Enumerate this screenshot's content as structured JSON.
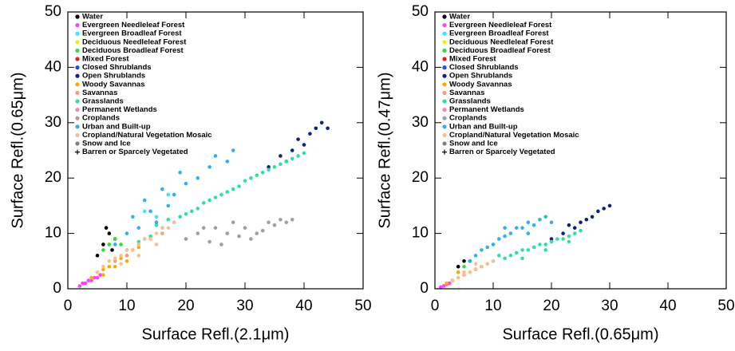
{
  "chart_data": [
    {
      "type": "scatter",
      "xlabel": "Surface Refl.(2.1μm)",
      "ylabel": "Surface Refl.(0.65μm)",
      "xlim": [
        0,
        50
      ],
      "ylim": [
        0,
        50
      ],
      "xticks": [
        0,
        10,
        20,
        30,
        40,
        50
      ],
      "yticks": [
        0,
        10,
        20,
        30,
        40,
        50
      ],
      "legend": "upper left",
      "series": [
        {
          "name": "Water",
          "color": "#000000",
          "marker": "circle",
          "x": [
            5,
            6,
            7,
            8,
            6.5,
            7.5
          ],
          "values": [
            6,
            8,
            10,
            9,
            11,
            7
          ]
        },
        {
          "name": "Evergreen Needleleaf Forest",
          "color": "#ff40ff",
          "marker": "circle",
          "x": [
            2,
            2.5,
            3,
            3.5,
            4,
            4.5,
            5,
            5.5
          ],
          "values": [
            0.5,
            1,
            1,
            1.5,
            1.5,
            2,
            2,
            2.5
          ]
        },
        {
          "name": "Evergreen Broadleaf Forest",
          "color": "#40e0ff",
          "marker": "circle",
          "x": [
            13,
            15,
            17
          ],
          "values": [
            14,
            13,
            17
          ]
        },
        {
          "name": "Deciduous Needleleaf Forest",
          "color": "#f0f000",
          "marker": "circle",
          "x": [],
          "values": []
        },
        {
          "name": "Deciduous Broadleaf Forest",
          "color": "#30e030",
          "marker": "circle",
          "x": [
            6,
            7,
            8,
            9
          ],
          "values": [
            7,
            8,
            9,
            8
          ]
        },
        {
          "name": "Mixed Forest",
          "color": "#e02020",
          "marker": "circle",
          "x": [],
          "values": []
        },
        {
          "name": "Closed Shrublands",
          "color": "#2050e0",
          "marker": "circle",
          "x": [],
          "values": []
        },
        {
          "name": "Open Shrublands",
          "color": "#102080",
          "marker": "circle",
          "x": [
            34,
            36,
            38,
            40,
            41,
            42,
            43,
            44,
            37,
            39
          ],
          "values": [
            22,
            24,
            25,
            26,
            28,
            29,
            30,
            29,
            23,
            27
          ]
        },
        {
          "name": "Woody Savannas",
          "color": "#f0b000",
          "marker": "circle",
          "x": [
            4,
            5,
            6,
            7,
            8,
            9,
            10,
            11,
            12,
            6,
            8,
            10
          ],
          "values": [
            2,
            3,
            3.5,
            4,
            5,
            5.5,
            6,
            7,
            7.5,
            2.5,
            4,
            5
          ]
        },
        {
          "name": "Savannas",
          "color": "#f0a080",
          "marker": "circle",
          "x": [
            8,
            10,
            12,
            14,
            16
          ],
          "values": [
            5,
            6,
            8,
            9,
            10
          ]
        },
        {
          "name": "Grasslands",
          "color": "#30e0a0",
          "marker": "circle",
          "x": [
            10,
            12,
            14,
            16,
            18,
            20,
            22,
            24,
            26,
            28,
            30,
            32,
            34,
            36,
            38,
            40,
            15,
            19,
            23,
            27,
            31,
            35,
            39,
            13,
            17,
            25,
            29,
            33,
            37,
            21
          ],
          "values": [
            7,
            8.5,
            9.5,
            11,
            12,
            13.5,
            14.5,
            16,
            17,
            18,
            19.5,
            20.5,
            21.5,
            22.5,
            23.5,
            24.5,
            11.5,
            13,
            15.5,
            17.5,
            20,
            22,
            24,
            9,
            12.5,
            16.5,
            18.5,
            21,
            23,
            14
          ]
        },
        {
          "name": "Permanent Wetlands",
          "color": "#ff80c0",
          "marker": "circle",
          "x": [],
          "values": []
        },
        {
          "name": "Croplands",
          "color": "#a0a0a0",
          "marker": "circle",
          "x": [
            20,
            22,
            24,
            25,
            27,
            28,
            30,
            31,
            33,
            34,
            35,
            36,
            37,
            26,
            29,
            32,
            23,
            38
          ],
          "values": [
            9,
            10,
            8.5,
            11,
            10,
            12,
            11,
            9,
            10.5,
            12,
            11.5,
            12.5,
            12,
            8,
            9.5,
            10,
            11,
            12.5
          ]
        },
        {
          "name": "Urban and Built-up",
          "color": "#30b0f0",
          "marker": "circle",
          "x": [
            8,
            10,
            12,
            14,
            15,
            17,
            18,
            20,
            22,
            24,
            25,
            27,
            28,
            13,
            16,
            19,
            11
          ],
          "values": [
            8,
            10,
            11,
            14,
            12,
            15,
            17,
            19,
            20,
            22,
            24,
            23,
            25,
            16,
            18,
            21,
            13
          ]
        },
        {
          "name": "Cropland/Natural Vegetation Mosaic",
          "color": "#f8c090",
          "marker": "circle",
          "x": [
            5,
            6,
            7,
            8,
            9,
            10,
            11,
            12,
            13,
            14,
            15,
            16,
            17,
            18,
            9,
            12,
            15
          ],
          "values": [
            3,
            4,
            5,
            5.5,
            6,
            7,
            7,
            8,
            9,
            9,
            10,
            11,
            11,
            12,
            4.5,
            6,
            8
          ]
        },
        {
          "name": "Snow and Ice",
          "color": "#808080",
          "marker": "circle",
          "x": [],
          "values": []
        },
        {
          "name": "Barren or Sparcely Vegetated",
          "color": "#000000",
          "marker": "plus",
          "x": [],
          "values": []
        }
      ]
    },
    {
      "type": "scatter",
      "xlabel": "Surface Refl.(0.65μm)",
      "ylabel": "Surface Refl.(0.47μm)",
      "xlim": [
        0,
        50
      ],
      "ylim": [
        0,
        50
      ],
      "xticks": [
        0,
        10,
        20,
        30,
        40,
        50
      ],
      "yticks": [
        0,
        10,
        20,
        30,
        40,
        50
      ],
      "legend": "upper left",
      "series": [
        {
          "name": "Water",
          "color": "#000000",
          "marker": "circle",
          "x": [
            4,
            5,
            6
          ],
          "values": [
            4,
            5,
            5
          ]
        },
        {
          "name": "Evergreen Needleleaf Forest",
          "color": "#ff40ff",
          "marker": "circle",
          "x": [
            1,
            1.5,
            2,
            2.5,
            3
          ],
          "values": [
            0.3,
            0.5,
            0.8,
            1,
            1.5
          ]
        },
        {
          "name": "Evergreen Broadleaf Forest",
          "color": "#40e0ff",
          "marker": "circle",
          "x": [],
          "values": []
        },
        {
          "name": "Deciduous Needleleaf Forest",
          "color": "#f0f000",
          "marker": "circle",
          "x": [],
          "values": []
        },
        {
          "name": "Deciduous Broadleaf Forest",
          "color": "#30e030",
          "marker": "circle",
          "x": [
            4,
            5
          ],
          "values": [
            3,
            4
          ]
        },
        {
          "name": "Mixed Forest",
          "color": "#e02020",
          "marker": "circle",
          "x": [],
          "values": []
        },
        {
          "name": "Closed Shrublands",
          "color": "#2050e0",
          "marker": "circle",
          "x": [],
          "values": []
        },
        {
          "name": "Open Shrublands",
          "color": "#102080",
          "marker": "circle",
          "x": [
            20,
            22,
            24,
            25,
            26,
            27,
            28,
            29,
            30,
            23
          ],
          "values": [
            9,
            10,
            11,
            12,
            12.5,
            13,
            14,
            14.5,
            15,
            11.5
          ]
        },
        {
          "name": "Woody Savannas",
          "color": "#f0b000",
          "marker": "circle",
          "x": [
            2,
            3,
            4,
            5,
            6,
            7,
            8,
            4
          ],
          "values": [
            1,
            1.5,
            2,
            2.5,
            3,
            3.5,
            4,
            3
          ]
        },
        {
          "name": "Savannas",
          "color": "#f0a080",
          "marker": "circle",
          "x": [
            5,
            7,
            9
          ],
          "values": [
            2.5,
            3.5,
            4.5
          ]
        },
        {
          "name": "Grasslands",
          "color": "#30e0a0",
          "marker": "circle",
          "x": [
            8,
            10,
            12,
            13,
            14,
            15,
            16,
            17,
            18,
            19,
            20,
            21,
            22,
            23,
            24,
            25,
            11,
            15,
            19,
            23
          ],
          "values": [
            4,
            5,
            5.5,
            6,
            6.5,
            7,
            7,
            7.5,
            8,
            8,
            8.5,
            9,
            9,
            9.5,
            10,
            10.5,
            6,
            5.5,
            7,
            8.5
          ]
        },
        {
          "name": "Permanent Wetlands",
          "color": "#ff80c0",
          "marker": "circle",
          "x": [],
          "values": []
        },
        {
          "name": "Croplands",
          "color": "#a0a0a0",
          "marker": "circle",
          "x": [],
          "values": []
        },
        {
          "name": "Urban and Built-up",
          "color": "#30b0f0",
          "marker": "circle",
          "x": [
            6,
            7,
            8,
            9,
            10,
            11,
            12,
            13,
            14,
            15,
            16,
            17,
            18,
            19,
            20,
            12,
            16
          ],
          "values": [
            5,
            6,
            7,
            7.5,
            8,
            9,
            9.5,
            10,
            11,
            11,
            12,
            11.5,
            12.5,
            13,
            12,
            11,
            10
          ]
        },
        {
          "name": "Cropland/Natural Vegetation Mosaic",
          "color": "#f8c090",
          "marker": "circle",
          "x": [
            3,
            4,
            5,
            6,
            7,
            8,
            9,
            10,
            5,
            7
          ],
          "values": [
            1.5,
            2,
            2.5,
            3,
            3.5,
            4,
            4.5,
            5,
            3,
            4.5
          ]
        },
        {
          "name": "Snow and Ice",
          "color": "#808080",
          "marker": "circle",
          "x": [],
          "values": []
        },
        {
          "name": "Barren or Sparcely Vegetated",
          "color": "#000000",
          "marker": "plus",
          "x": [],
          "values": []
        }
      ]
    }
  ]
}
